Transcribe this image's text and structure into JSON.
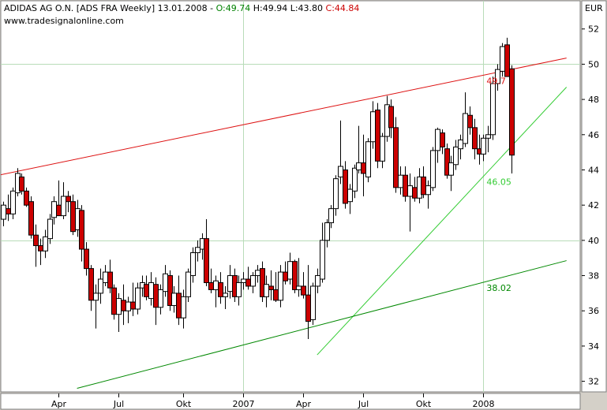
{
  "header": {
    "caption": "ADIDAS AG O.N. [ADS FRA  Weekly] 13.01.2008 - ",
    "o": "O:49.74",
    "h": " H:49.94",
    "l": " L:43.80",
    "c": " C:44.84",
    "o_color": "#008000",
    "c_color": "#cc0000",
    "website": "www.tradesignalonline.com"
  },
  "chart_data": {
    "type": "candlestick",
    "title": "ADIDAS AG O.N. [ADS FRA  Weekly] 13.01.2008",
    "currency_label": "EUR",
    "y_range": [
      31.4,
      53.6
    ],
    "y_ticks": [
      32,
      34,
      36,
      38,
      40,
      42,
      44,
      46,
      48,
      50,
      52
    ],
    "x_ticks": [
      {
        "label": "Apr",
        "bar": 12
      },
      {
        "label": "Jul",
        "bar": 25
      },
      {
        "label": "Okt",
        "bar": 39
      },
      {
        "label": "2007",
        "bar": 52
      },
      {
        "label": "Apr",
        "bar": 65
      },
      {
        "label": "Jul",
        "bar": 78
      },
      {
        "label": "Okt",
        "bar": 91
      },
      {
        "label": "2008",
        "bar": 104
      }
    ],
    "grid": {
      "vertical_bars": [
        52,
        104
      ],
      "horizontal": [
        40,
        50
      ]
    },
    "bull_color": "#ffffff",
    "bear_color": "#cc0000",
    "candles": [
      [
        41.2,
        42.2,
        40.8,
        42.0
      ],
      [
        41.8,
        42.6,
        41.1,
        41.5
      ],
      [
        41.5,
        43.0,
        41.2,
        42.8
      ],
      [
        42.7,
        44.1,
        42.5,
        43.8
      ],
      [
        43.6,
        43.8,
        42.6,
        42.8
      ],
      [
        42.8,
        43.0,
        41.9,
        42.0
      ],
      [
        42.2,
        42.5,
        40.1,
        40.3
      ],
      [
        40.3,
        40.9,
        38.5,
        39.7
      ],
      [
        39.7,
        40.1,
        38.6,
        39.4
      ],
      [
        39.4,
        40.6,
        39.0,
        40.2
      ],
      [
        40.1,
        41.5,
        39.8,
        41.2
      ],
      [
        41.3,
        42.5,
        40.9,
        42.2
      ],
      [
        42.0,
        43.4,
        41.5,
        41.4
      ],
      [
        41.4,
        43.3,
        41.2,
        42.5
      ],
      [
        42.5,
        42.8,
        41.6,
        42.2
      ],
      [
        42.2,
        42.6,
        40.3,
        40.5
      ],
      [
        40.6,
        42.3,
        40.2,
        41.8
      ],
      [
        41.7,
        42.0,
        38.8,
        39.5
      ],
      [
        39.5,
        39.9,
        38.0,
        38.4
      ],
      [
        38.4,
        38.6,
        36.0,
        36.6
      ],
      [
        36.6,
        37.5,
        35.0,
        37.0
      ],
      [
        37.0,
        38.4,
        36.4,
        37.8
      ],
      [
        37.6,
        38.6,
        37.4,
        38.2
      ],
      [
        38.2,
        38.9,
        37.0,
        37.3
      ],
      [
        37.3,
        37.5,
        35.5,
        35.8
      ],
      [
        35.8,
        37.0,
        34.8,
        36.7
      ],
      [
        36.6,
        37.5,
        35.2,
        36.0
      ],
      [
        36.0,
        36.8,
        35.3,
        36.5
      ],
      [
        36.5,
        37.6,
        35.7,
        36.1
      ],
      [
        36.1,
        37.6,
        35.8,
        37.3
      ],
      [
        37.3,
        38.0,
        36.8,
        37.6
      ],
      [
        37.5,
        38.0,
        36.6,
        36.8
      ],
      [
        36.7,
        38.2,
        36.3,
        37.6
      ],
      [
        37.5,
        37.9,
        35.2,
        36.2
      ],
      [
        36.2,
        37.5,
        35.8,
        37.2
      ],
      [
        37.1,
        38.6,
        36.8,
        38.1
      ],
      [
        38.0,
        38.3,
        36.0,
        36.3
      ],
      [
        36.3,
        37.4,
        35.9,
        37.0
      ],
      [
        37.0,
        38.0,
        35.2,
        35.6
      ],
      [
        35.6,
        37.2,
        35.0,
        36.8
      ],
      [
        36.8,
        38.4,
        36.5,
        38.2
      ],
      [
        38.0,
        39.6,
        37.6,
        39.3
      ],
      [
        39.3,
        40.0,
        38.8,
        39.6
      ],
      [
        39.5,
        40.4,
        38.9,
        40.1
      ],
      [
        40.1,
        41.2,
        37.4,
        37.6
      ],
      [
        37.6,
        38.4,
        37.0,
        37.2
      ],
      [
        37.2,
        38.0,
        36.2,
        37.7
      ],
      [
        37.6,
        38.2,
        36.4,
        36.8
      ],
      [
        36.8,
        37.4,
        36.1,
        37.0
      ],
      [
        37.1,
        38.6,
        36.7,
        38.0
      ],
      [
        38.0,
        38.4,
        36.5,
        36.8
      ],
      [
        36.8,
        38.0,
        36.3,
        37.6
      ],
      [
        37.6,
        38.2,
        37.2,
        37.8
      ],
      [
        37.8,
        38.5,
        37.2,
        37.4
      ],
      [
        37.4,
        38.2,
        37.0,
        38.0
      ],
      [
        38.0,
        38.6,
        37.6,
        38.3
      ],
      [
        38.4,
        38.8,
        36.5,
        36.8
      ],
      [
        36.8,
        38.0,
        36.2,
        37.5
      ],
      [
        37.4,
        38.3,
        36.6,
        37.2
      ],
      [
        37.2,
        38.2,
        36.5,
        36.6
      ],
      [
        36.6,
        38.6,
        36.2,
        38.2
      ],
      [
        38.2,
        38.8,
        37.5,
        37.7
      ],
      [
        37.8,
        39.3,
        37.5,
        38.8
      ],
      [
        38.8,
        38.9,
        37.0,
        37.2
      ],
      [
        37.2,
        39.0,
        36.8,
        37.4
      ],
      [
        37.4,
        38.2,
        36.7,
        36.9
      ],
      [
        36.9,
        38.6,
        34.4,
        35.4
      ],
      [
        35.5,
        37.6,
        35.2,
        37.4
      ],
      [
        37.4,
        38.4,
        37.0,
        38.0
      ],
      [
        37.8,
        41.0,
        37.6,
        40.0
      ],
      [
        40.0,
        41.2,
        39.6,
        41.0
      ],
      [
        41.0,
        42.0,
        40.7,
        41.8
      ],
      [
        41.8,
        43.7,
        41.4,
        43.5
      ],
      [
        43.6,
        46.8,
        43.2,
        44.2
      ],
      [
        44.0,
        44.5,
        41.8,
        42.1
      ],
      [
        42.2,
        43.2,
        41.5,
        42.9
      ],
      [
        42.8,
        44.3,
        42.4,
        44.1
      ],
      [
        44.0,
        46.5,
        43.8,
        44.4
      ],
      [
        44.4,
        46.0,
        42.5,
        43.8
      ],
      [
        43.6,
        45.8,
        43.3,
        45.6
      ],
      [
        45.6,
        47.9,
        45.2,
        47.3
      ],
      [
        47.4,
        47.8,
        44.1,
        44.5
      ],
      [
        44.5,
        46.1,
        44.1,
        45.9
      ],
      [
        45.9,
        48.2,
        45.6,
        47.7
      ],
      [
        47.6,
        48.0,
        45.8,
        46.4
      ],
      [
        46.4,
        47.0,
        42.7,
        43.0
      ],
      [
        43.0,
        44.2,
        42.6,
        43.7
      ],
      [
        43.7,
        44.2,
        42.2,
        42.5
      ],
      [
        42.5,
        43.8,
        40.5,
        43.1
      ],
      [
        43.0,
        43.6,
        42.2,
        42.4
      ],
      [
        42.4,
        44.1,
        42.1,
        43.6
      ],
      [
        43.6,
        44.2,
        42.4,
        42.6
      ],
      [
        42.6,
        43.4,
        41.8,
        43.1
      ],
      [
        43.0,
        45.3,
        42.8,
        45.1
      ],
      [
        45.1,
        46.4,
        44.4,
        46.3
      ],
      [
        46.1,
        46.3,
        44.9,
        45.3
      ],
      [
        45.2,
        45.5,
        43.5,
        43.7
      ],
      [
        43.7,
        44.8,
        42.8,
        44.4
      ],
      [
        44.3,
        45.7,
        44.0,
        45.3
      ],
      [
        45.2,
        46.0,
        44.6,
        45.7
      ],
      [
        45.5,
        48.4,
        45.3,
        47.2
      ],
      [
        47.1,
        47.6,
        46.0,
        46.4
      ],
      [
        46.4,
        46.9,
        44.6,
        45.2
      ],
      [
        45.2,
        46.0,
        44.3,
        44.9
      ],
      [
        44.9,
        46.0,
        44.5,
        45.8
      ],
      [
        45.8,
        46.5,
        45.0,
        46.0
      ],
      [
        46.0,
        49.3,
        45.7,
        48.9
      ],
      [
        48.9,
        50.0,
        48.5,
        49.7
      ],
      [
        49.6,
        51.2,
        49.3,
        51.0
      ],
      [
        51.1,
        51.5,
        49.3,
        49.3
      ],
      [
        49.74,
        49.94,
        43.8,
        44.84
      ]
    ],
    "lines": [
      {
        "color": "#dd1111",
        "p1": [
          -1,
          43.7
        ],
        "p2": [
          122,
          50.35
        ],
        "label": "49.7"
      },
      {
        "color": "#33cc33",
        "p1": [
          68,
          33.5
        ],
        "p2": [
          122,
          48.7
        ],
        "label": "46.05"
      },
      {
        "color": "#008800",
        "p1": [
          16,
          31.6
        ],
        "p2": [
          122,
          38.85
        ],
        "label": "38.02"
      }
    ]
  }
}
